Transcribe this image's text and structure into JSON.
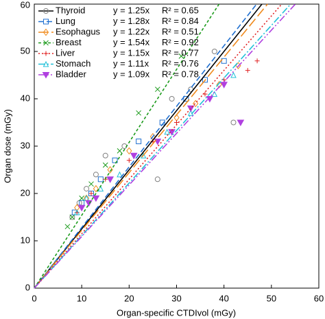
{
  "chart_data": {
    "type": "scatter",
    "x_label": "Organ-specific CTDIvol (mGy)",
    "y_label": "Organ dose (mGy)",
    "xlim": [
      0,
      60
    ],
    "ylim": [
      0,
      60
    ],
    "xticks": [
      0,
      10,
      20,
      30,
      40,
      50,
      60
    ],
    "yticks": [
      0,
      10,
      20,
      30,
      40,
      50,
      60
    ],
    "legend": "upper-left",
    "series": [
      {
        "name": "Thyroid",
        "color": "#000000",
        "marker_color": "#808080",
        "marker": "circle",
        "dash": "solid",
        "fit": {
          "slope": 1.25,
          "label": "y = 1.25x",
          "r2_label": "R² = 0.65"
        },
        "x": [
          8,
          9.5,
          11,
          13,
          15,
          19,
          26,
          29,
          33,
          38,
          42
        ],
        "y": [
          15,
          18,
          21,
          24,
          28,
          30,
          23,
          40,
          42,
          50,
          35
        ]
      },
      {
        "name": "Lung",
        "color": "#1f6fd0",
        "marker_color": "#1f6fd0",
        "marker": "square",
        "dash": "8,4",
        "fit": {
          "slope": 1.28,
          "label": "y = 1.28x",
          "r2_label": "R² = 0.84"
        },
        "x": [
          8.5,
          10,
          12,
          14,
          17,
          22,
          27,
          32,
          36,
          40
        ],
        "y": [
          16,
          18,
          20,
          23,
          27,
          31,
          35,
          40,
          44,
          48
        ]
      },
      {
        "name": "Esophagus",
        "color": "#f08a1c",
        "marker_color": "#f08a1c",
        "marker": "diamond",
        "dash": "14,5",
        "fit": {
          "slope": 1.22,
          "label": "y = 1.22x",
          "r2_label": "R² = 0.51"
        },
        "x": [
          9,
          11,
          13,
          16,
          20,
          25,
          30,
          34,
          39,
          43
        ],
        "y": [
          17,
          19,
          21,
          25,
          29,
          32,
          36,
          39,
          43,
          47
        ]
      },
      {
        "name": "Breast",
        "color": "#1a9a1a",
        "marker_color": "#1a9a1a",
        "marker": "x",
        "dash": "4,3",
        "fit": {
          "slope": 1.54,
          "label": "y = 1.54x",
          "r2_label": "R² = 0.92"
        },
        "x": [
          7,
          8,
          10,
          12,
          15,
          18,
          22,
          26,
          31
        ],
        "y": [
          13,
          15,
          19,
          22,
          26,
          29,
          37,
          42,
          49
        ]
      },
      {
        "name": "Liver",
        "color": "#e02020",
        "marker_color": "#e02020",
        "marker": "plus",
        "dash": "2,3",
        "fit": {
          "slope": 1.15,
          "label": "y = 1.15x",
          "r2_label": "R² = 0.77"
        },
        "x": [
          9,
          12,
          15,
          20,
          25,
          30,
          36,
          40,
          45,
          47
        ],
        "y": [
          16,
          20,
          23,
          27,
          31,
          35,
          41,
          44,
          46,
          48
        ]
      },
      {
        "name": "Stomach",
        "color": "#20c0d8",
        "marker_color": "#20c0d8",
        "marker": "triangle",
        "dash": "10,3,2,3",
        "fit": {
          "slope": 1.11,
          "label": "y = 1.11x",
          "r2_label": "R² = 0.76"
        },
        "x": [
          9,
          11,
          14,
          18,
          23,
          28,
          33,
          38,
          42
        ],
        "y": [
          16,
          19,
          21,
          24,
          28,
          33,
          37,
          41,
          45
        ]
      },
      {
        "name": "Bladder",
        "color": "#b040e0",
        "marker_color": "#b040e0",
        "marker": "triangle-down",
        "dash": "10,3,2,3,2,3",
        "fit": {
          "slope": 1.09,
          "label": "y = 1.09x",
          "r2_label": "R² = 0.78"
        },
        "x": [
          10,
          11.5,
          13,
          16,
          21,
          26,
          29,
          33,
          37,
          40,
          43.5
        ],
        "y": [
          17,
          18,
          19,
          23,
          28,
          31,
          33,
          38,
          40,
          43,
          35
        ]
      }
    ]
  }
}
